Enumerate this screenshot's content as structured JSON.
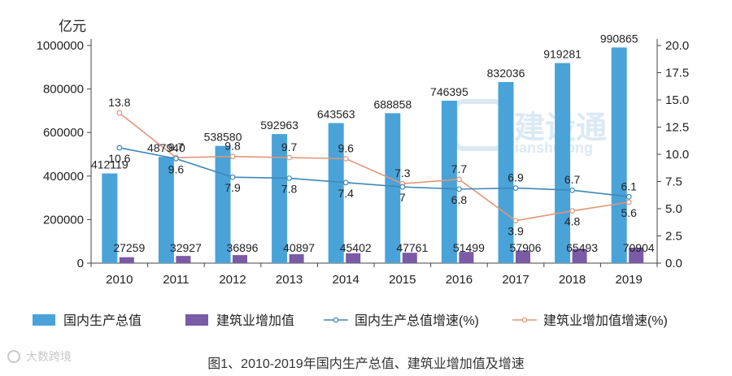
{
  "chart_data": {
    "type": "bar",
    "title": "",
    "caption": "图1、2010-2019年国内生产总值、建筑业增加值及增速",
    "y_left_unit": "亿元",
    "categories": [
      "2010",
      "2011",
      "2012",
      "2013",
      "2014",
      "2015",
      "2016",
      "2017",
      "2018",
      "2019"
    ],
    "y_left_ticks": [
      "0",
      "200000",
      "400000",
      "600000",
      "800000",
      "1000000"
    ],
    "y_left_range": [
      0,
      1000000
    ],
    "y_right_ticks": [
      "0.0",
      "2.5",
      "5.0",
      "7.5",
      "10.0",
      "12.5",
      "15.0",
      "17.5",
      "20.0"
    ],
    "y_right_range": [
      0,
      20
    ],
    "grid": false,
    "legend_position": "bottom",
    "series": [
      {
        "name": "国内生产总值",
        "kind": "bar",
        "axis": "left",
        "color": "#4aa3d8",
        "values": [
          412119,
          487940,
          538580,
          592963,
          643563,
          688858,
          746395,
          832036,
          919281,
          990865
        ],
        "labels": [
          "412119",
          "487940",
          "538580",
          "592963",
          "643563",
          "688858",
          "746395",
          "832036",
          "919281",
          "990865"
        ]
      },
      {
        "name": "建筑业增加值",
        "kind": "bar",
        "axis": "left",
        "color": "#7b5aa6",
        "values": [
          27259,
          32927,
          36896,
          40897,
          45402,
          47761,
          51499,
          57906,
          65493,
          70904
        ],
        "labels": [
          "27259",
          "32927",
          "36896",
          "40897",
          "45402",
          "47761",
          "51499",
          "57906",
          "65493",
          "70904"
        ]
      },
      {
        "name": "国内生产总值增速(%)",
        "kind": "line",
        "axis": "right",
        "color": "#3f87b8",
        "values": [
          10.6,
          9.6,
          7.9,
          7.8,
          7.4,
          7.0,
          6.8,
          6.9,
          6.7,
          6.1
        ],
        "labels": [
          "10.6",
          "9.6",
          "7.9",
          "7.8",
          "7.4",
          "7",
          "6.8",
          "6.9",
          "6.7",
          "6.1"
        ]
      },
      {
        "name": "建筑业增加值增速(%)",
        "kind": "line",
        "axis": "right",
        "color": "#e0977a",
        "values": [
          13.8,
          9.7,
          9.8,
          9.7,
          9.6,
          7.3,
          7.7,
          3.9,
          4.8,
          5.6
        ],
        "labels": [
          "13.8",
          "9.7",
          "9.8",
          "9.7",
          "9.6",
          "7.3",
          "7.7",
          "3.9",
          "4.8",
          "5.6"
        ]
      }
    ]
  },
  "watermark": {
    "text": "建设通",
    "subtext": "jianshetong"
  },
  "corner_mark": {
    "text": "大数跨境"
  }
}
